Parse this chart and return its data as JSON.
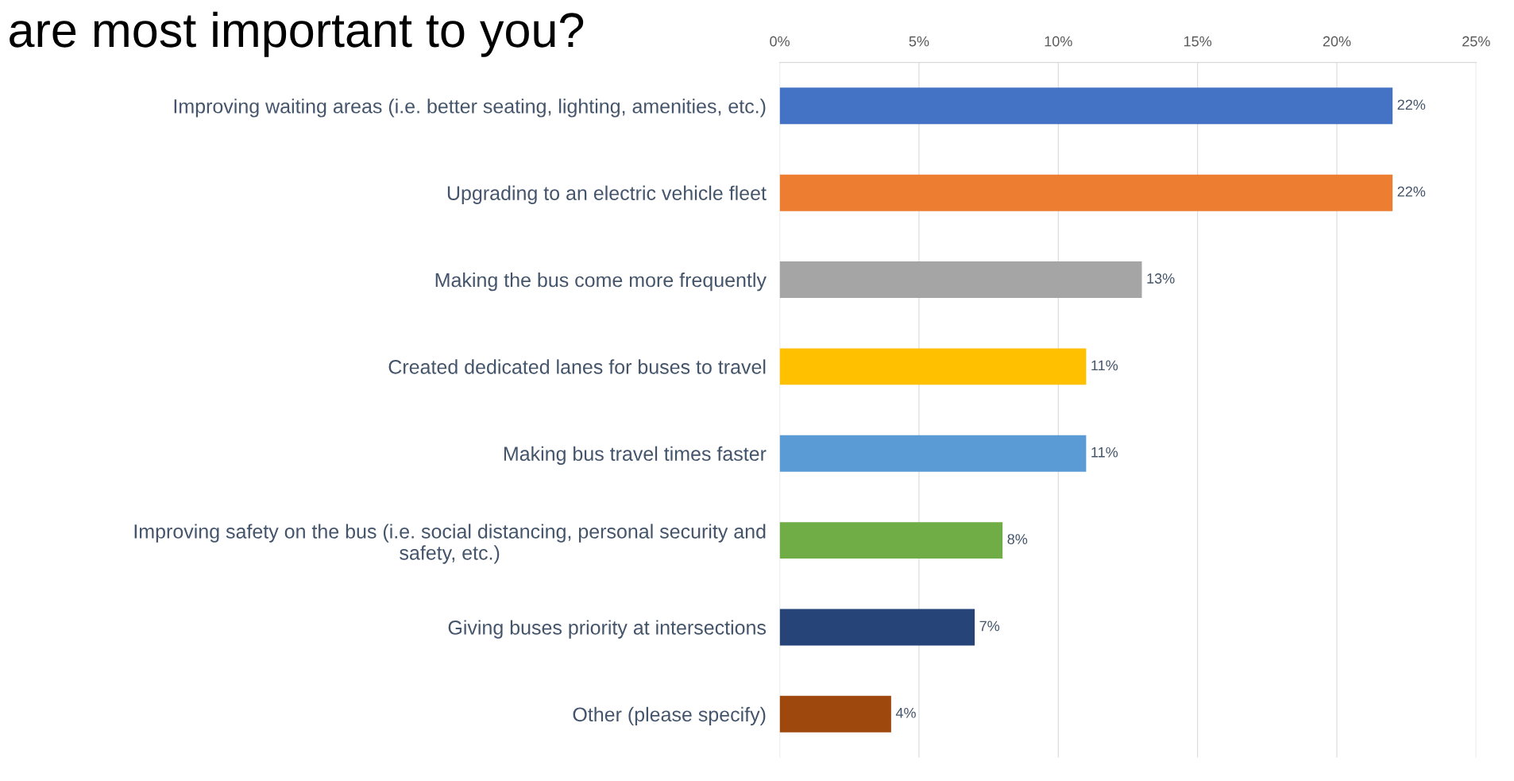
{
  "chart_data": {
    "type": "bar",
    "orientation": "horizontal",
    "title": "are most important to you?",
    "categories": [
      "Improving waiting areas (i.e. better seating, lighting, amenities, etc.)",
      "Upgrading to an electric vehicle fleet",
      "Making the bus come more frequently",
      "Created dedicated lanes for buses to travel",
      "Making bus travel times faster",
      "Improving safety on the bus (i.e. social distancing, personal security and\nsafety, etc.)",
      "Giving buses priority at intersections",
      "Other (please specify)"
    ],
    "values": [
      22,
      22,
      13,
      11,
      11,
      8,
      7,
      4
    ],
    "colors": [
      "#4472c4",
      "#ed7d31",
      "#a5a5a5",
      "#ffc000",
      "#5b9bd5",
      "#70ad47",
      "#264478",
      "#9e480e"
    ],
    "xlim": [
      0,
      25
    ],
    "xticks": [
      {
        "value": 0,
        "label": "0%"
      },
      {
        "value": 5,
        "label": "5%"
      },
      {
        "value": 10,
        "label": "10%"
      },
      {
        "value": 15,
        "label": "15%"
      },
      {
        "value": 20,
        "label": "20%"
      },
      {
        "value": 25,
        "label": "25%"
      }
    ],
    "value_labels": [
      "22%",
      "22%",
      "13%",
      "11%",
      "11%",
      "8%",
      "7%",
      "4%"
    ],
    "grid": "x",
    "legend": false
  }
}
